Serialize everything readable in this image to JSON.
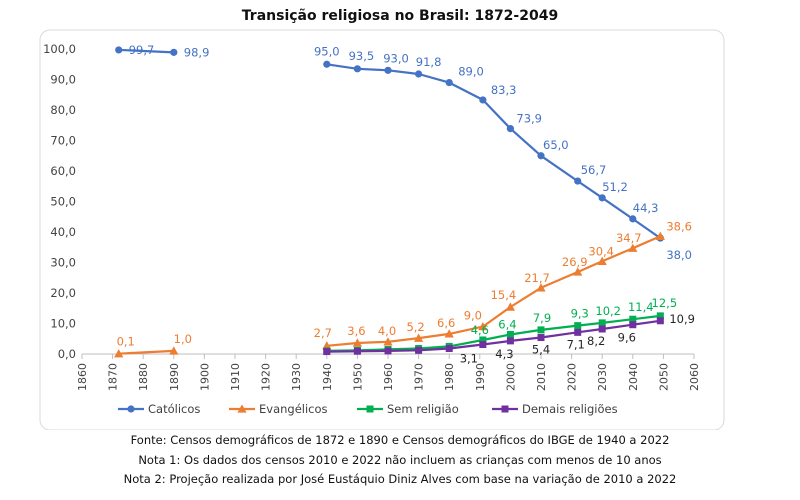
{
  "chart_data": {
    "type": "line",
    "title": "Transição religiosa no Brasil: 1872-2049",
    "xlim": [
      1860,
      2060
    ],
    "ylim": [
      0,
      100
    ],
    "x_ticks": [
      "1860",
      "1870",
      "1880",
      "1890",
      "1900",
      "1910",
      "1920",
      "1930",
      "1940",
      "1950",
      "1960",
      "1970",
      "1980",
      "1990",
      "2000",
      "2010",
      "2020",
      "2030",
      "2040",
      "2050",
      "2060"
    ],
    "y_ticks": [
      "0,0",
      "10,0",
      "20,0",
      "30,0",
      "40,0",
      "50,0",
      "60,0",
      "70,0",
      "80,0",
      "90,0",
      "100,0"
    ],
    "legend_position": "bottom",
    "grid": false,
    "series": [
      {
        "name": "Católicos",
        "color": "#4472C4",
        "marker": "circle",
        "points": [
          {
            "x": 1872,
            "y": 99.7,
            "label": "99,7"
          },
          {
            "x": 1890,
            "y": 98.9,
            "label": "98,9"
          },
          {
            "x": 1940,
            "y": 95.0,
            "label": "95,0"
          },
          {
            "x": 1950,
            "y": 93.5,
            "label": "93,5"
          },
          {
            "x": 1960,
            "y": 93.0,
            "label": "93,0"
          },
          {
            "x": 1970,
            "y": 91.8,
            "label": "91,8"
          },
          {
            "x": 1980,
            "y": 89.0,
            "label": "89,0"
          },
          {
            "x": 1991,
            "y": 83.3,
            "label": "83,3"
          },
          {
            "x": 2000,
            "y": 73.9,
            "label": "73,9"
          },
          {
            "x": 2010,
            "y": 65.0,
            "label": "65,0"
          },
          {
            "x": 2022,
            "y": 56.7,
            "label": "56,7"
          },
          {
            "x": 2030,
            "y": 51.2,
            "label": "51,2"
          },
          {
            "x": 2040,
            "y": 44.3,
            "label": "44,3"
          },
          {
            "x": 2049,
            "y": 38.0,
            "label": "38,0"
          }
        ]
      },
      {
        "name": "Evangélicos",
        "color": "#ED7D31",
        "marker": "triangle",
        "points": [
          {
            "x": 1872,
            "y": 0.1,
            "label": "0,1"
          },
          {
            "x": 1890,
            "y": 1.0,
            "label": "1,0"
          },
          {
            "x": 1940,
            "y": 2.7,
            "label": "2,7"
          },
          {
            "x": 1950,
            "y": 3.6,
            "label": "3,6"
          },
          {
            "x": 1960,
            "y": 4.0,
            "label": "4,0"
          },
          {
            "x": 1970,
            "y": 5.2,
            "label": "5,2"
          },
          {
            "x": 1980,
            "y": 6.6,
            "label": "6,6"
          },
          {
            "x": 1991,
            "y": 9.0,
            "label": "9,0"
          },
          {
            "x": 2000,
            "y": 15.4,
            "label": "15,4"
          },
          {
            "x": 2010,
            "y": 21.7,
            "label": "21,7"
          },
          {
            "x": 2022,
            "y": 26.9,
            "label": "26,9"
          },
          {
            "x": 2030,
            "y": 30.4,
            "label": "30,4"
          },
          {
            "x": 2040,
            "y": 34.7,
            "label": "34,7"
          },
          {
            "x": 2049,
            "y": 38.6,
            "label": "38,6"
          }
        ]
      },
      {
        "name": "Sem religião",
        "color": "#00B050",
        "marker": "square",
        "points": [
          {
            "x": 1940,
            "y": 1.0
          },
          {
            "x": 1950,
            "y": 1.2
          },
          {
            "x": 1960,
            "y": 1.5
          },
          {
            "x": 1970,
            "y": 1.8
          },
          {
            "x": 1980,
            "y": 2.5
          },
          {
            "x": 1991,
            "y": 4.6,
            "label": "4,6"
          },
          {
            "x": 2000,
            "y": 6.4,
            "label": "6,4"
          },
          {
            "x": 2010,
            "y": 7.9,
            "label": "7,9"
          },
          {
            "x": 2022,
            "y": 9.3,
            "label": "9,3"
          },
          {
            "x": 2030,
            "y": 10.2,
            "label": "10,2"
          },
          {
            "x": 2040,
            "y": 11.4,
            "label": "11,4"
          },
          {
            "x": 2049,
            "y": 12.5,
            "label": "12,5"
          }
        ]
      },
      {
        "name": "Demais religiões",
        "color": "#7030A0",
        "marker": "square",
        "points": [
          {
            "x": 1940,
            "y": 0.8
          },
          {
            "x": 1950,
            "y": 0.9
          },
          {
            "x": 1960,
            "y": 1.0
          },
          {
            "x": 1970,
            "y": 1.2
          },
          {
            "x": 1980,
            "y": 1.8
          },
          {
            "x": 1991,
            "y": 3.1,
            "label": "3,1"
          },
          {
            "x": 2000,
            "y": 4.3,
            "label": "4,3"
          },
          {
            "x": 2010,
            "y": 5.4,
            "label": "5,4"
          },
          {
            "x": 2022,
            "y": 7.1,
            "label": "7,1"
          },
          {
            "x": 2030,
            "y": 8.2,
            "label": "8,2"
          },
          {
            "x": 2040,
            "y": 9.6,
            "label": "9,6"
          },
          {
            "x": 2049,
            "y": 10.9,
            "label": "10,9"
          }
        ]
      }
    ]
  },
  "notes": {
    "source": "Fonte: Censos demográficos de 1872 e 1890 e Censos demográficos do IBGE de 1940 a 2022",
    "note1": "Nota 1: Os dados dos censos 2010 e 2022 não incluem as crianças com menos de 10 anos",
    "note2": "Nota 2: Projeção realizada por José Eustáquio Diniz Alves com base na variação de 2010 a 2022"
  }
}
